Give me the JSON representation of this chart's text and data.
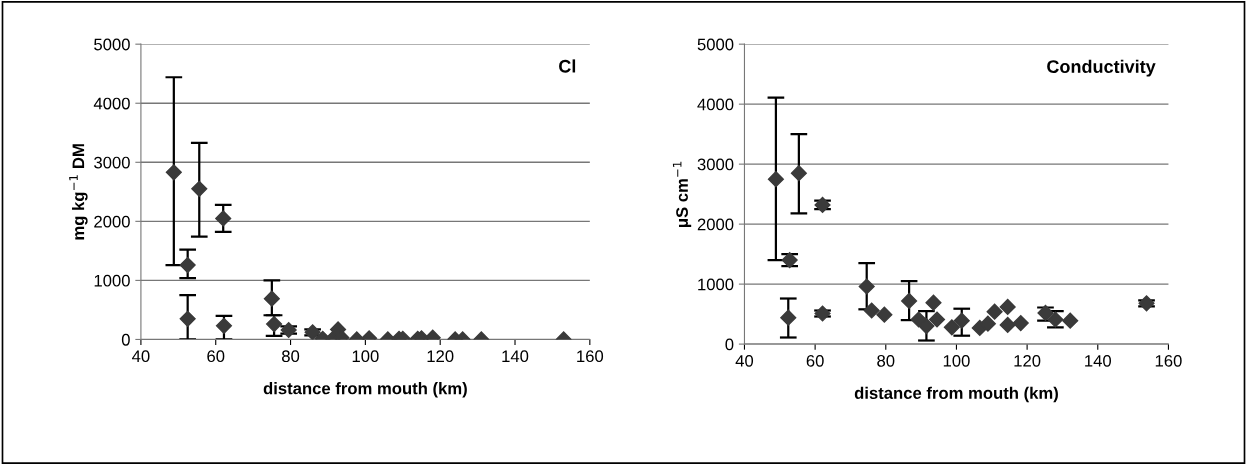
{
  "chart_data": [
    {
      "type": "scatter",
      "title": "Cl",
      "xlabel": "distance from mouth (km)",
      "ylabel": "mg kg$^{−1}$ DM",
      "xlim": [
        40,
        160
      ],
      "xticks": [
        40,
        60,
        80,
        100,
        120,
        140,
        160
      ],
      "ylim": [
        0,
        5000
      ],
      "yticks": [
        0,
        1000,
        2000,
        3000,
        4000,
        5000
      ],
      "grid": "y",
      "marker": "diamond",
      "legend": false,
      "series": [
        {
          "color": "#3a3a3a",
          "x": [
            48.8,
            52.5,
            52.5,
            55.6,
            62,
            62.2,
            75,
            75.6,
            79.5,
            85.9,
            88.6,
            91.3,
            92.7,
            93.6,
            97.7,
            101,
            106,
            109,
            110,
            114,
            115,
            118,
            124,
            126,
            131,
            153
          ],
          "values": [
            2830,
            1260,
            350,
            2550,
            2050,
            230,
            690,
            260,
            160,
            120,
            10,
            10,
            170,
            30,
            0,
            20,
            0,
            10,
            10,
            10,
            20,
            30,
            0,
            0,
            0,
            0
          ],
          "errors": [
            [
              1260,
              4440
            ],
            [
              1040,
              1520
            ],
            [
              0,
              750
            ],
            [
              1740,
              3330
            ],
            [
              1820,
              2280
            ],
            [
              0,
              400
            ],
            [
              410,
              1000
            ],
            [
              60,
              410
            ],
            [
              100,
              220
            ],
            [
              70,
              170
            ],
            null,
            null,
            null,
            null,
            null,
            null,
            null,
            null,
            null,
            null,
            null,
            null,
            null,
            null,
            null,
            null
          ]
        }
      ]
    },
    {
      "type": "scatter",
      "title": "Conductivity",
      "xlabel": "distance from mouth (km)",
      "ylabel": "μS cm$^{−1}$",
      "xlim": [
        40,
        160
      ],
      "xticks": [
        40,
        60,
        80,
        100,
        120,
        140,
        160
      ],
      "ylim": [
        0,
        5000
      ],
      "yticks": [
        0,
        1000,
        2000,
        3000,
        4000,
        5000
      ],
      "grid": "y",
      "marker": "diamond",
      "legend": false,
      "series": [
        {
          "color": "#3a3a3a",
          "x": [
            48.9,
            52.8,
            52.4,
            55.4,
            62.1,
            62.1,
            74.6,
            76,
            79.6,
            86.6,
            89.3,
            91.5,
            93.5,
            94.5,
            98.7,
            101.5,
            106.6,
            108.9,
            110.8,
            114.5,
            114.5,
            118.2,
            125.2,
            128,
            132.2,
            153.8
          ],
          "values": [
            2750,
            1400,
            440,
            2850,
            2320,
            510,
            960,
            560,
            490,
            720,
            410,
            300,
            690,
            410,
            280,
            390,
            270,
            340,
            540,
            620,
            320,
            350,
            520,
            410,
            390,
            680
          ],
          "errors": [
            [
              1400,
              4110
            ],
            [
              1300,
              1500
            ],
            [
              110,
              760
            ],
            [
              2180,
              3500
            ],
            [
              2250,
              2390
            ],
            [
              460,
              560
            ],
            [
              580,
              1350
            ],
            null,
            null,
            [
              400,
              1050
            ],
            null,
            [
              60,
              550
            ],
            null,
            null,
            null,
            [
              140,
              590
            ],
            null,
            null,
            null,
            null,
            null,
            null,
            [
              390,
              610
            ],
            [
              280,
              550
            ],
            null,
            [
              630,
              730
            ]
          ]
        }
      ]
    }
  ]
}
